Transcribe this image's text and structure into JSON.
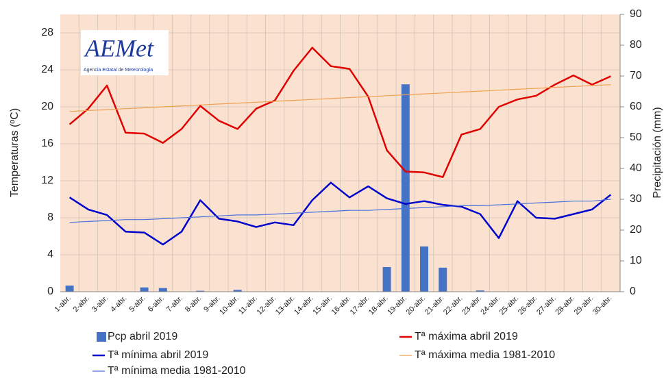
{
  "chart_data": {
    "type": "combo",
    "logo": {
      "mark": "AEMet",
      "text": "Agencia Estatal de Meteorología"
    },
    "ylabel": "Temperaturas (ºC)",
    "y2label": "Precipitación (mm)",
    "categories": [
      "1-abr.",
      "2-abr.",
      "3-abr.",
      "4-abr.",
      "5-abr.",
      "6-abr.",
      "7-abr.",
      "8-abr.",
      "9-abr.",
      "10-abr.",
      "11-abr.",
      "12-abr.",
      "13-abr.",
      "14-abr.",
      "15-abr.",
      "16-abr.",
      "17-abr.",
      "18-abr.",
      "19-abr.",
      "20-abr.",
      "21-abr.",
      "22-abr.",
      "23-abr.",
      "24-abr.",
      "25-abr.",
      "26-abr.",
      "27-abr.",
      "28-abr.",
      "29-abr.",
      "30-abr."
    ],
    "ylim": [
      0,
      30
    ],
    "yticks": [
      0,
      4,
      8,
      12,
      16,
      20,
      24,
      28
    ],
    "y2lim": [
      0,
      90
    ],
    "y2ticks": [
      0,
      10,
      20,
      30,
      40,
      50,
      60,
      70,
      80,
      90
    ],
    "grid": true,
    "series": [
      {
        "name": "Pcp abril 2019",
        "type": "bar",
        "axis": "y2",
        "color": "#4472c4",
        "values": [
          2,
          0,
          0,
          0,
          1.4,
          1.2,
          0,
          0.3,
          0,
          0.6,
          0,
          0,
          0,
          0,
          0,
          0,
          0,
          8,
          67.3,
          14.7,
          7.8,
          0,
          0.4,
          0,
          0,
          0,
          0,
          0,
          0,
          0
        ]
      },
      {
        "name": "Tª máxima abril 2019",
        "type": "line",
        "color": "#e00000",
        "values": [
          18.1,
          19.8,
          22.3,
          17.2,
          17.1,
          16.1,
          17.6,
          20.1,
          18.5,
          17.6,
          19.8,
          20.7,
          23.9,
          26.4,
          24.4,
          24.1,
          21.1,
          15.3,
          13.0,
          12.9,
          12.4,
          17.0,
          17.6,
          20.0,
          20.8,
          21.2,
          22.4,
          23.4,
          22.4,
          23.3
        ]
      },
      {
        "name": "Tª mínima abril 2019",
        "type": "line",
        "color": "#0000cc",
        "values": [
          10.2,
          8.9,
          8.3,
          6.5,
          6.4,
          5.1,
          6.5,
          9.9,
          7.9,
          7.6,
          7.0,
          7.5,
          7.2,
          9.9,
          11.8,
          10.2,
          11.4,
          10.1,
          9.5,
          9.8,
          9.4,
          9.2,
          8.4,
          5.8,
          9.8,
          8.0,
          7.9,
          8.4,
          8.9,
          10.5
        ]
      },
      {
        "name": "Tª máxima media 1981-2010",
        "type": "line",
        "color": "#f0a050",
        "values": [
          19.5,
          19.6,
          19.7,
          19.8,
          19.9,
          20.0,
          20.1,
          20.2,
          20.3,
          20.4,
          20.5,
          20.6,
          20.7,
          20.8,
          20.9,
          21.0,
          21.1,
          21.2,
          21.3,
          21.4,
          21.5,
          21.6,
          21.7,
          21.8,
          21.9,
          22.0,
          22.1,
          22.2,
          22.3,
          22.4
        ]
      },
      {
        "name": "Tª mínima media 1981-2010",
        "type": "line",
        "color": "#4a70e0",
        "values": [
          7.5,
          7.6,
          7.7,
          7.8,
          7.8,
          7.9,
          8.0,
          8.1,
          8.2,
          8.3,
          8.3,
          8.4,
          8.5,
          8.6,
          8.7,
          8.8,
          8.8,
          8.9,
          9.0,
          9.1,
          9.2,
          9.3,
          9.3,
          9.4,
          9.5,
          9.6,
          9.7,
          9.8,
          9.8,
          10.0
        ]
      }
    ]
  }
}
